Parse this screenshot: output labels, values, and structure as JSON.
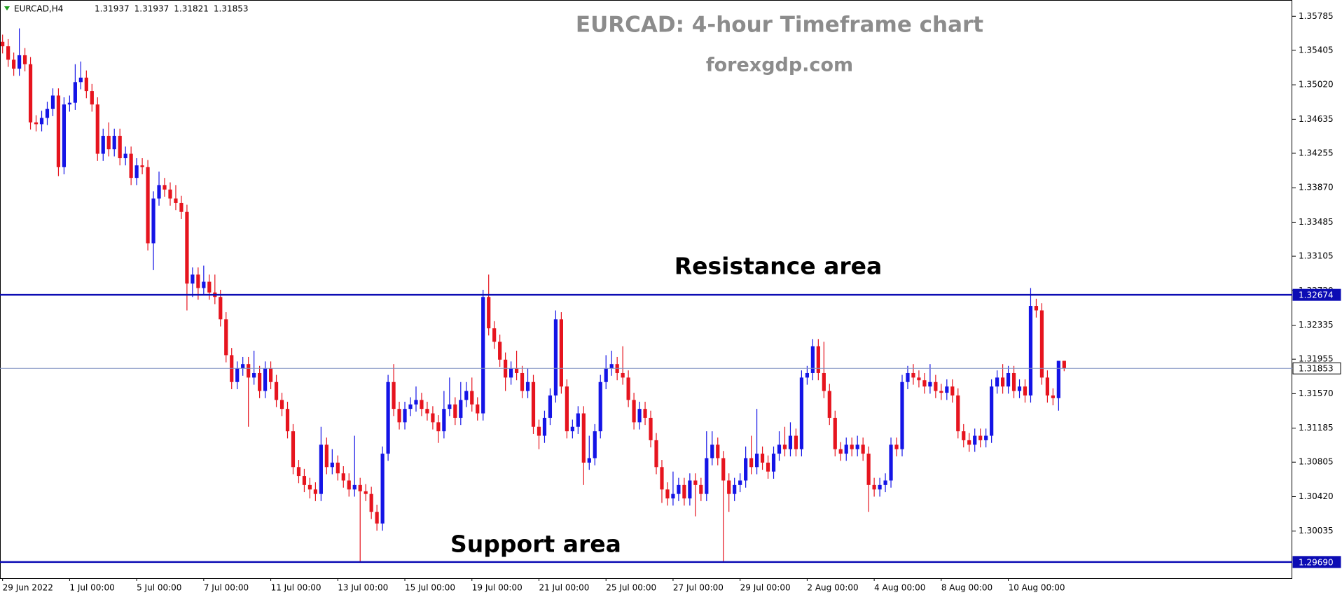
{
  "chart_data": {
    "type": "candlestick",
    "symbol": "EURCAD,H4",
    "title": "EURCAD: 4-hour Timeframe chart",
    "subtitle": "forexgdp.com",
    "annotations": [
      "Resistance area",
      "Support area"
    ],
    "up_color": "#1414e6",
    "down_color": "#e6141e",
    "ylim": [
      1.29509,
      1.35967
    ],
    "yticks": [
      1.35785,
      1.35405,
      {
        "value": 1.3502,
        "label": "1.35020"
      },
      1.34635,
      1.34255,
      {
        "value": 1.3387,
        "label": "1.33870"
      },
      1.33485,
      1.33105,
      {
        "value": 1.3272,
        "label": "1.32720"
      },
      1.32335,
      1.31955,
      {
        "value": 1.3157,
        "label": "1.31570"
      },
      1.31185,
      1.30805,
      {
        "value": 1.3042,
        "label": "1.30420"
      },
      1.30035
    ],
    "lines": [
      {
        "value": 1.32674,
        "color": "#0c0cb4",
        "bold": true
      },
      {
        "value": 1.31853,
        "color": "#7d8fc0",
        "bold": false
      },
      {
        "value": 1.2969,
        "label": "1.29690",
        "color": "#0c0cb4",
        "bold": true
      }
    ],
    "categories": [
      "29 Jun 2022",
      null,
      null,
      null,
      null,
      null,
      null,
      null,
      null,
      null,
      null,
      null,
      "1 Jul 00:00",
      null,
      null,
      null,
      null,
      null,
      null,
      null,
      null,
      null,
      null,
      null,
      "5 Jul 00:00",
      null,
      null,
      null,
      null,
      null,
      null,
      null,
      null,
      null,
      null,
      null,
      "7 Jul 00:00",
      null,
      null,
      null,
      null,
      null,
      null,
      null,
      null,
      null,
      null,
      null,
      "11 Jul 00:00",
      null,
      null,
      null,
      null,
      null,
      null,
      null,
      null,
      null,
      null,
      null,
      "13 Jul 00:00",
      null,
      null,
      null,
      null,
      null,
      null,
      null,
      null,
      null,
      null,
      null,
      "15 Jul 00:00",
      null,
      null,
      null,
      null,
      null,
      null,
      null,
      null,
      null,
      null,
      null,
      "19 Jul 00:00",
      null,
      null,
      null,
      null,
      null,
      null,
      null,
      null,
      null,
      null,
      null,
      "21 Jul 00:00",
      null,
      null,
      null,
      null,
      null,
      null,
      null,
      null,
      null,
      null,
      null,
      "25 Jul 00:00",
      null,
      null,
      null,
      null,
      null,
      null,
      null,
      null,
      null,
      null,
      null,
      "27 Jul 00:00",
      null,
      null,
      null,
      null,
      null,
      null,
      null,
      null,
      null,
      null,
      null,
      "29 Jul 00:00",
      null,
      null,
      null,
      null,
      null,
      null,
      null,
      null,
      null,
      null,
      null,
      "2 Aug 00:00",
      null,
      null,
      null,
      null,
      null,
      null,
      null,
      null,
      null,
      null,
      null,
      "4 Aug 00:00",
      null,
      null,
      null,
      null,
      null,
      null,
      null,
      null,
      null,
      null,
      null,
      "8 Aug 00:00",
      null,
      null,
      null,
      null,
      null,
      null,
      null,
      null,
      null,
      null,
      null,
      "10 Aug 00:00",
      null,
      null,
      null,
      null,
      null,
      null,
      null,
      null,
      null,
      null
    ],
    "candles": [
      [
        1.355,
        1.3558,
        1.3537,
        1.3545
      ],
      [
        1.3545,
        1.3553,
        1.3522,
        1.353
      ],
      [
        1.353,
        1.3538,
        1.3512,
        1.352
      ],
      [
        1.352,
        1.3565,
        1.3512,
        1.3535
      ],
      [
        1.3535,
        1.3543,
        1.3517,
        1.3525
      ],
      [
        1.3525,
        1.3533,
        1.3452,
        1.346
      ],
      [
        1.346,
        1.3468,
        1.345,
        1.3458
      ],
      [
        1.3458,
        1.3473,
        1.345,
        1.3465
      ],
      [
        1.3465,
        1.3483,
        1.3457,
        1.3475
      ],
      [
        1.3475,
        1.3498,
        1.3467,
        1.349
      ],
      [
        1.349,
        1.3498,
        1.34,
        1.341
      ],
      [
        1.341,
        1.3488,
        1.3402,
        1.348
      ],
      [
        1.348,
        1.349,
        1.3472,
        1.3482
      ],
      [
        1.3482,
        1.3525,
        1.3474,
        1.3505
      ],
      [
        1.3505,
        1.3528,
        1.3497,
        1.351
      ],
      [
        1.351,
        1.3518,
        1.3487,
        1.3495
      ],
      [
        1.3495,
        1.3503,
        1.3472,
        1.348
      ],
      [
        1.348,
        1.3488,
        1.3417,
        1.3425
      ],
      [
        1.3425,
        1.3453,
        1.3417,
        1.3445
      ],
      [
        1.3445,
        1.346,
        1.3422,
        1.343
      ],
      [
        1.343,
        1.3453,
        1.3422,
        1.3445
      ],
      [
        1.3445,
        1.3453,
        1.3412,
        1.342
      ],
      [
        1.342,
        1.3433,
        1.3412,
        1.3425
      ],
      [
        1.3425,
        1.3433,
        1.339,
        1.3398
      ],
      [
        1.3398,
        1.342,
        1.339,
        1.3412
      ],
      [
        1.3412,
        1.342,
        1.3402,
        1.341
      ],
      [
        1.341,
        1.3418,
        1.3317,
        1.3325
      ],
      [
        1.3325,
        1.3383,
        1.3295,
        1.3375
      ],
      [
        1.3375,
        1.3405,
        1.3367,
        1.339
      ],
      [
        1.339,
        1.3398,
        1.3377,
        1.3385
      ],
      [
        1.3385,
        1.3393,
        1.3367,
        1.3375
      ],
      [
        1.3375,
        1.339,
        1.3362,
        1.337
      ],
      [
        1.337,
        1.3378,
        1.3352,
        1.336
      ],
      [
        1.336,
        1.3368,
        1.325,
        1.328
      ],
      [
        1.328,
        1.3298,
        1.3265,
        1.329
      ],
      [
        1.329,
        1.3298,
        1.3262,
        1.3275
      ],
      [
        1.3275,
        1.33,
        1.3267,
        1.3282
      ],
      [
        1.3282,
        1.329,
        1.3262,
        1.327
      ],
      [
        1.327,
        1.329,
        1.3257,
        1.3265
      ],
      [
        1.3265,
        1.3273,
        1.3232,
        1.324
      ],
      [
        1.324,
        1.3248,
        1.3192,
        1.32
      ],
      [
        1.32,
        1.3208,
        1.3162,
        1.317
      ],
      [
        1.317,
        1.3193,
        1.3162,
        1.3185
      ],
      [
        1.3185,
        1.3198,
        1.3177,
        1.319
      ],
      [
        1.319,
        1.3198,
        1.312,
        1.3175
      ],
      [
        1.3175,
        1.3205,
        1.3167,
        1.318
      ],
      [
        1.318,
        1.3188,
        1.3152,
        1.316
      ],
      [
        1.316,
        1.3193,
        1.3152,
        1.3185
      ],
      [
        1.3185,
        1.3193,
        1.3162,
        1.317
      ],
      [
        1.317,
        1.3178,
        1.3142,
        1.315
      ],
      [
        1.315,
        1.3158,
        1.3132,
        1.314
      ],
      [
        1.314,
        1.3148,
        1.3107,
        1.3115
      ],
      [
        1.3115,
        1.3123,
        1.3067,
        1.3075
      ],
      [
        1.3075,
        1.3083,
        1.3057,
        1.3065
      ],
      [
        1.3065,
        1.3073,
        1.3047,
        1.3055
      ],
      [
        1.3055,
        1.3063,
        1.304,
        1.305
      ],
      [
        1.305,
        1.3058,
        1.3037,
        1.3045
      ],
      [
        1.3045,
        1.312,
        1.3037,
        1.31
      ],
      [
        1.31,
        1.3108,
        1.3067,
        1.3075
      ],
      [
        1.3075,
        1.3095,
        1.3067,
        1.308
      ],
      [
        1.308,
        1.3088,
        1.306,
        1.3068
      ],
      [
        1.3068,
        1.3076,
        1.3052,
        1.306
      ],
      [
        1.306,
        1.3068,
        1.3042,
        1.305
      ],
      [
        1.305,
        1.311,
        1.3042,
        1.3055
      ],
      [
        1.3055,
        1.3063,
        1.2969,
        1.3048
      ],
      [
        1.3048,
        1.3056,
        1.3037,
        1.3045
      ],
      [
        1.3045,
        1.3053,
        1.3017,
        1.3025
      ],
      [
        1.3025,
        1.3033,
        1.3004,
        1.3012
      ],
      [
        1.3012,
        1.3098,
        1.3004,
        1.309
      ],
      [
        1.309,
        1.3178,
        1.3082,
        1.317
      ],
      [
        1.317,
        1.319,
        1.3132,
        1.314
      ],
      [
        1.314,
        1.3148,
        1.3117,
        1.3125
      ],
      [
        1.3125,
        1.3148,
        1.3117,
        1.314
      ],
      [
        1.314,
        1.3153,
        1.3132,
        1.3145
      ],
      [
        1.3145,
        1.3165,
        1.3137,
        1.315
      ],
      [
        1.315,
        1.3158,
        1.3132,
        1.314
      ],
      [
        1.314,
        1.3148,
        1.3127,
        1.3135
      ],
      [
        1.3135,
        1.3143,
        1.3117,
        1.3125
      ],
      [
        1.3125,
        1.3133,
        1.3102,
        1.3115
      ],
      [
        1.3115,
        1.316,
        1.3107,
        1.314
      ],
      [
        1.314,
        1.3175,
        1.3132,
        1.3145
      ],
      [
        1.3145,
        1.3153,
        1.3122,
        1.313
      ],
      [
        1.313,
        1.317,
        1.3122,
        1.315
      ],
      [
        1.315,
        1.317,
        1.3142,
        1.316
      ],
      [
        1.316,
        1.3175,
        1.3137,
        1.3145
      ],
      [
        1.3145,
        1.3153,
        1.3127,
        1.3135
      ],
      [
        1.3135,
        1.3273,
        1.3127,
        1.3265
      ],
      [
        1.3265,
        1.329,
        1.3222,
        1.323
      ],
      [
        1.323,
        1.3238,
        1.3207,
        1.3215
      ],
      [
        1.3215,
        1.3223,
        1.3187,
        1.3195
      ],
      [
        1.3195,
        1.3203,
        1.316,
        1.3175
      ],
      [
        1.3175,
        1.3193,
        1.3167,
        1.3185
      ],
      [
        1.3185,
        1.3205,
        1.3172,
        1.318
      ],
      [
        1.318,
        1.3188,
        1.3152,
        1.316
      ],
      [
        1.316,
        1.3185,
        1.3152,
        1.317
      ],
      [
        1.317,
        1.3178,
        1.3112,
        1.312
      ],
      [
        1.312,
        1.3128,
        1.3095,
        1.311
      ],
      [
        1.311,
        1.3138,
        1.3102,
        1.313
      ],
      [
        1.313,
        1.3163,
        1.3122,
        1.3155
      ],
      [
        1.3155,
        1.325,
        1.3147,
        1.324
      ],
      [
        1.324,
        1.3248,
        1.3157,
        1.3165
      ],
      [
        1.3165,
        1.3173,
        1.3107,
        1.3115
      ],
      [
        1.3115,
        1.3128,
        1.3107,
        1.312
      ],
      [
        1.312,
        1.3143,
        1.3112,
        1.3135
      ],
      [
        1.3135,
        1.3143,
        1.3055,
        1.308
      ],
      [
        1.308,
        1.311,
        1.3072,
        1.3085
      ],
      [
        1.3085,
        1.3123,
        1.3077,
        1.3115
      ],
      [
        1.3115,
        1.3178,
        1.3107,
        1.317
      ],
      [
        1.317,
        1.32,
        1.3162,
        1.3185
      ],
      [
        1.3185,
        1.3205,
        1.3177,
        1.319
      ],
      [
        1.319,
        1.3198,
        1.3172,
        1.318
      ],
      [
        1.318,
        1.321,
        1.3167,
        1.3175
      ],
      [
        1.3175,
        1.3183,
        1.3142,
        1.315
      ],
      [
        1.315,
        1.3158,
        1.3117,
        1.3125
      ],
      [
        1.3125,
        1.3148,
        1.3117,
        1.314
      ],
      [
        1.314,
        1.3148,
        1.3122,
        1.313
      ],
      [
        1.313,
        1.3138,
        1.3097,
        1.3105
      ],
      [
        1.3105,
        1.3113,
        1.3067,
        1.3075
      ],
      [
        1.3075,
        1.3083,
        1.3035,
        1.305
      ],
      [
        1.305,
        1.3058,
        1.3032,
        1.304
      ],
      [
        1.304,
        1.307,
        1.3032,
        1.3045
      ],
      [
        1.3045,
        1.3063,
        1.3037,
        1.3055
      ],
      [
        1.3055,
        1.3063,
        1.3032,
        1.304
      ],
      [
        1.304,
        1.3068,
        1.3032,
        1.306
      ],
      [
        1.306,
        1.3068,
        1.302,
        1.3055
      ],
      [
        1.3055,
        1.3063,
        1.3037,
        1.3045
      ],
      [
        1.3045,
        1.3115,
        1.3037,
        1.3085
      ],
      [
        1.3085,
        1.3115,
        1.3077,
        1.31
      ],
      [
        1.31,
        1.3108,
        1.3077,
        1.3085
      ],
      [
        1.3085,
        1.3093,
        1.2969,
        1.306
      ],
      [
        1.306,
        1.3068,
        1.3025,
        1.3045
      ],
      [
        1.3045,
        1.3063,
        1.3037,
        1.3055
      ],
      [
        1.3055,
        1.3068,
        1.3047,
        1.306
      ],
      [
        1.306,
        1.3098,
        1.3052,
        1.3085
      ],
      [
        1.3085,
        1.311,
        1.3067,
        1.3075
      ],
      [
        1.3075,
        1.314,
        1.3067,
        1.309
      ],
      [
        1.309,
        1.3098,
        1.3072,
        1.308
      ],
      [
        1.308,
        1.3088,
        1.3062,
        1.307
      ],
      [
        1.307,
        1.3098,
        1.3062,
        1.309
      ],
      [
        1.309,
        1.3115,
        1.3082,
        1.31
      ],
      [
        1.31,
        1.312,
        1.3087,
        1.3095
      ],
      [
        1.3095,
        1.3125,
        1.3087,
        1.311
      ],
      [
        1.311,
        1.3118,
        1.3087,
        1.3095
      ],
      [
        1.3095,
        1.3183,
        1.3087,
        1.3175
      ],
      [
        1.3175,
        1.3188,
        1.3167,
        1.318
      ],
      [
        1.318,
        1.3218,
        1.3172,
        1.321
      ],
      [
        1.321,
        1.3218,
        1.3172,
        1.318
      ],
      [
        1.318,
        1.3215,
        1.3152,
        1.316
      ],
      [
        1.316,
        1.3168,
        1.3122,
        1.313
      ],
      [
        1.313,
        1.3138,
        1.3087,
        1.3095
      ],
      [
        1.3095,
        1.3103,
        1.3082,
        1.309
      ],
      [
        1.309,
        1.3108,
        1.3082,
        1.31
      ],
      [
        1.31,
        1.3108,
        1.3087,
        1.3095
      ],
      [
        1.3095,
        1.311,
        1.3087,
        1.31
      ],
      [
        1.31,
        1.3108,
        1.3082,
        1.309
      ],
      [
        1.309,
        1.3098,
        1.3025,
        1.3055
      ],
      [
        1.3055,
        1.3063,
        1.3042,
        1.305
      ],
      [
        1.305,
        1.3063,
        1.3042,
        1.3055
      ],
      [
        1.3055,
        1.3068,
        1.3047,
        1.306
      ],
      [
        1.306,
        1.3108,
        1.3052,
        1.31
      ],
      [
        1.31,
        1.3108,
        1.3087,
        1.3095
      ],
      [
        1.3095,
        1.3178,
        1.3087,
        1.317
      ],
      [
        1.317,
        1.3188,
        1.3162,
        1.318
      ],
      [
        1.318,
        1.319,
        1.3167,
        1.3175
      ],
      [
        1.3175,
        1.3183,
        1.3164,
        1.3172
      ],
      [
        1.3172,
        1.318,
        1.3157,
        1.3165
      ],
      [
        1.3165,
        1.319,
        1.3157,
        1.317
      ],
      [
        1.317,
        1.3178,
        1.3152,
        1.316
      ],
      [
        1.316,
        1.3168,
        1.315,
        1.3158
      ],
      [
        1.3158,
        1.3173,
        1.315,
        1.3165
      ],
      [
        1.3165,
        1.3173,
        1.3147,
        1.3155
      ],
      [
        1.3155,
        1.3163,
        1.3107,
        1.3115
      ],
      [
        1.3115,
        1.3123,
        1.3097,
        1.3105
      ],
      [
        1.3105,
        1.3113,
        1.3092,
        1.31
      ],
      [
        1.31,
        1.3118,
        1.3092,
        1.311
      ],
      [
        1.311,
        1.3118,
        1.3097,
        1.3105
      ],
      [
        1.3105,
        1.3118,
        1.3097,
        1.311
      ],
      [
        1.311,
        1.3173,
        1.3102,
        1.3165
      ],
      [
        1.3165,
        1.3183,
        1.3157,
        1.3175
      ],
      [
        1.3175,
        1.319,
        1.3157,
        1.3165
      ],
      [
        1.3165,
        1.3188,
        1.3157,
        1.318
      ],
      [
        1.318,
        1.3188,
        1.3152,
        1.316
      ],
      [
        1.316,
        1.3173,
        1.3152,
        1.3165
      ],
      [
        1.3165,
        1.3173,
        1.3147,
        1.3155
      ],
      [
        1.3155,
        1.3275,
        1.3147,
        1.3255
      ],
      [
        1.3255,
        1.3263,
        1.3242,
        1.325
      ],
      [
        1.325,
        1.3258,
        1.3167,
        1.3175
      ],
      [
        1.3175,
        1.3183,
        1.3147,
        1.3155
      ],
      [
        1.3155,
        1.3163,
        1.3144,
        1.3152
      ],
      [
        1.3152,
        1.31937,
        1.3138,
        1.31937
      ],
      [
        1.31937,
        1.31937,
        1.31821,
        1.31853
      ]
    ]
  }
}
